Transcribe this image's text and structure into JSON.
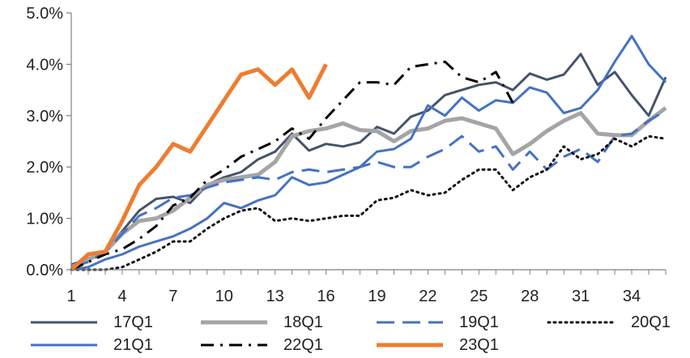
{
  "chart_data": {
    "type": "line",
    "title": "",
    "xlabel": "",
    "ylabel": "",
    "xlim": [
      1,
      36
    ],
    "ylim": [
      0,
      5
    ],
    "x_ticks": [
      1,
      4,
      7,
      10,
      13,
      16,
      19,
      22,
      25,
      28,
      31,
      34
    ],
    "y_ticks": [
      0,
      1,
      2,
      3,
      4,
      5
    ],
    "y_tick_labels": [
      "0.0%",
      "1.0%",
      "2.0%",
      "3.0%",
      "4.0%",
      "5.0%"
    ],
    "grid": false,
    "legend_position": "bottom",
    "series": [
      {
        "name": "17Q1",
        "color": "#44546a",
        "dash": "solid",
        "width": 3,
        "values": [
          0.1,
          0.2,
          0.35,
          0.75,
          1.15,
          1.38,
          1.42,
          1.3,
          1.65,
          1.8,
          1.9,
          2.15,
          2.3,
          2.65,
          2.32,
          2.45,
          2.4,
          2.48,
          2.78,
          2.65,
          2.98,
          3.1,
          3.4,
          3.5,
          3.6,
          3.65,
          3.5,
          3.82,
          3.7,
          3.8,
          4.2,
          3.6,
          3.85,
          3.4,
          3.0,
          3.75
        ]
      },
      {
        "name": "18Q1",
        "color": "#a5a5a5",
        "dash": "solid",
        "width": 5,
        "values": [
          0.05,
          0.2,
          0.35,
          0.7,
          0.95,
          1.0,
          1.15,
          1.4,
          1.65,
          1.75,
          1.8,
          1.85,
          2.1,
          2.6,
          2.7,
          2.75,
          2.85,
          2.72,
          2.7,
          2.5,
          2.7,
          2.75,
          2.9,
          2.95,
          2.85,
          2.75,
          2.25,
          2.45,
          2.7,
          2.9,
          3.05,
          2.65,
          2.62,
          2.62,
          2.9,
          3.15
        ]
      },
      {
        "name": "19Q1",
        "color": "#4472c4",
        "dash": "long-dash",
        "width": 3,
        "values": [
          0.05,
          0.15,
          0.35,
          0.7,
          1.05,
          1.2,
          1.4,
          1.45,
          1.6,
          1.7,
          1.75,
          1.8,
          1.75,
          1.9,
          1.95,
          1.9,
          1.95,
          2.0,
          2.1,
          2.0,
          2.0,
          2.2,
          2.35,
          2.6,
          2.3,
          2.4,
          1.95,
          2.3,
          1.95,
          2.2,
          2.35,
          2.1,
          2.6,
          2.65,
          2.9,
          3.1
        ]
      },
      {
        "name": "20Q1",
        "color": "#111111",
        "dash": "dotted",
        "width": 3,
        "values": [
          0.0,
          0.0,
          0.0,
          0.05,
          0.2,
          0.35,
          0.55,
          0.55,
          0.8,
          1.0,
          1.15,
          1.2,
          0.95,
          1.0,
          0.95,
          1.0,
          1.05,
          1.05,
          1.35,
          1.4,
          1.55,
          1.45,
          1.5,
          1.75,
          1.95,
          1.95,
          1.55,
          1.8,
          1.95,
          2.4,
          2.15,
          2.25,
          2.55,
          2.4,
          2.6,
          2.55
        ]
      },
      {
        "name": "21Q1",
        "color": "#4472c4",
        "dash": "solid",
        "width": 3,
        "values": [
          0.0,
          0.05,
          0.2,
          0.3,
          0.45,
          0.55,
          0.65,
          0.8,
          1.0,
          1.3,
          1.2,
          1.35,
          1.45,
          1.8,
          1.65,
          1.7,
          1.85,
          2.0,
          2.3,
          2.35,
          2.55,
          3.2,
          3.0,
          3.35,
          3.1,
          3.3,
          3.25,
          3.55,
          3.45,
          3.05,
          3.15,
          3.5,
          4.05,
          4.55,
          4.0,
          3.65
        ]
      },
      {
        "name": "22Q1",
        "color": "#000000",
        "dash": "dash-dot",
        "width": 3,
        "values": [
          0.0,
          0.15,
          0.3,
          0.4,
          0.6,
          0.85,
          1.25,
          1.4,
          1.75,
          1.95,
          2.2,
          2.35,
          2.5,
          2.75,
          2.55,
          2.95,
          3.3,
          3.65,
          3.65,
          3.6,
          3.95,
          4.0,
          4.05,
          3.75,
          3.65,
          3.85,
          3.25
        ]
      },
      {
        "name": "23Q1",
        "color": "#ed7d31",
        "dash": "solid",
        "width": 5,
        "values": [
          0.0,
          0.3,
          0.35,
          0.95,
          1.65,
          2.0,
          2.45,
          2.3,
          2.8,
          3.3,
          3.8,
          3.9,
          3.6,
          3.9,
          3.35,
          4.0
        ]
      }
    ]
  }
}
